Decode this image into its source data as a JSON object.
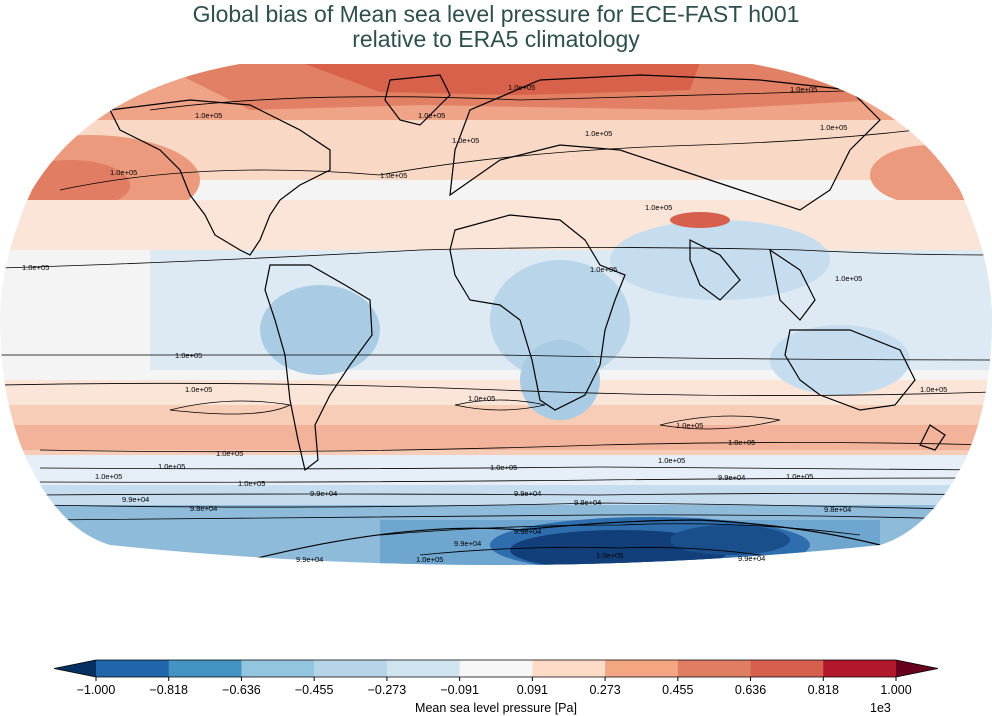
{
  "title": {
    "line1": "Global bias of Mean sea level pressure for ECE-FAST h001",
    "line2": "relative to ERA5 climatology"
  },
  "colorbar": {
    "label": "Mean sea level pressure [Pa]",
    "offset_text": "1e3",
    "ticks": [
      "−1.000",
      "−0.818",
      "−0.636",
      "−0.455",
      "−0.273",
      "−0.091",
      "0.091",
      "0.273",
      "0.455",
      "0.636",
      "0.818",
      "1.000"
    ],
    "colors": [
      "#053061",
      "#2166ac",
      "#4393c3",
      "#92c5de",
      "#b6d5e8",
      "#d1e5f0",
      "#f7f7f7",
      "#fddbc7",
      "#f4a582",
      "#e07d63",
      "#d6604d",
      "#b2182b",
      "#67001f"
    ]
  },
  "map": {
    "projection": "Robinson",
    "contour_labels": [
      "1.0e+05",
      "9.9e+04",
      "9.8e+04"
    ]
  }
}
